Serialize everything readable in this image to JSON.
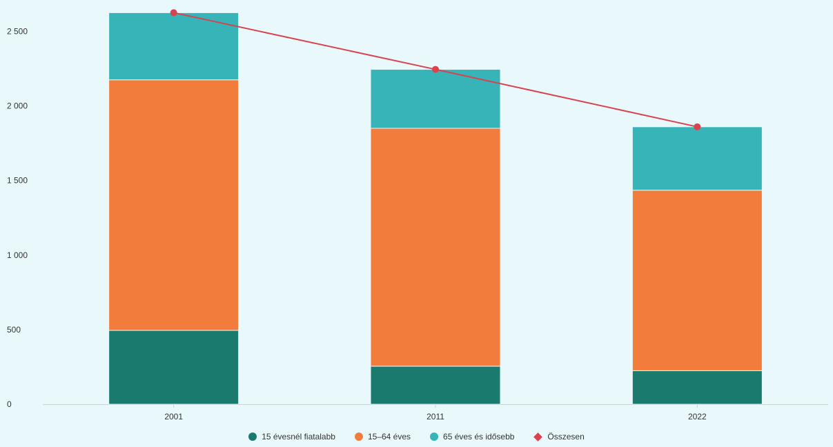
{
  "chart_data": {
    "type": "bar",
    "stacked": true,
    "categories": [
      "2001",
      "2011",
      "2022"
    ],
    "ylim": [
      0,
      2650
    ],
    "yticks": [
      0,
      500,
      1000,
      1500,
      2000,
      2500
    ],
    "ytick_labels": [
      "0",
      "500",
      "1 000",
      "1 500",
      "2 000",
      "2 500"
    ],
    "grid": false,
    "legend_position": "bottom",
    "series": [
      {
        "name": "15 évesnél fiatalabb",
        "type": "bar",
        "color": "#1a7a6e",
        "values": [
          495,
          255,
          225
        ]
      },
      {
        "name": "15–64 éves",
        "type": "bar",
        "color": "#f27c3c",
        "values": [
          1680,
          1595,
          1210
        ]
      },
      {
        "name": "65 éves és idősebb",
        "type": "bar",
        "color": "#36b4b8",
        "values": [
          450,
          395,
          425
        ]
      },
      {
        "name": "Összesen",
        "type": "line",
        "color": "#d9434f",
        "values": [
          2625,
          2245,
          1860
        ]
      }
    ]
  }
}
